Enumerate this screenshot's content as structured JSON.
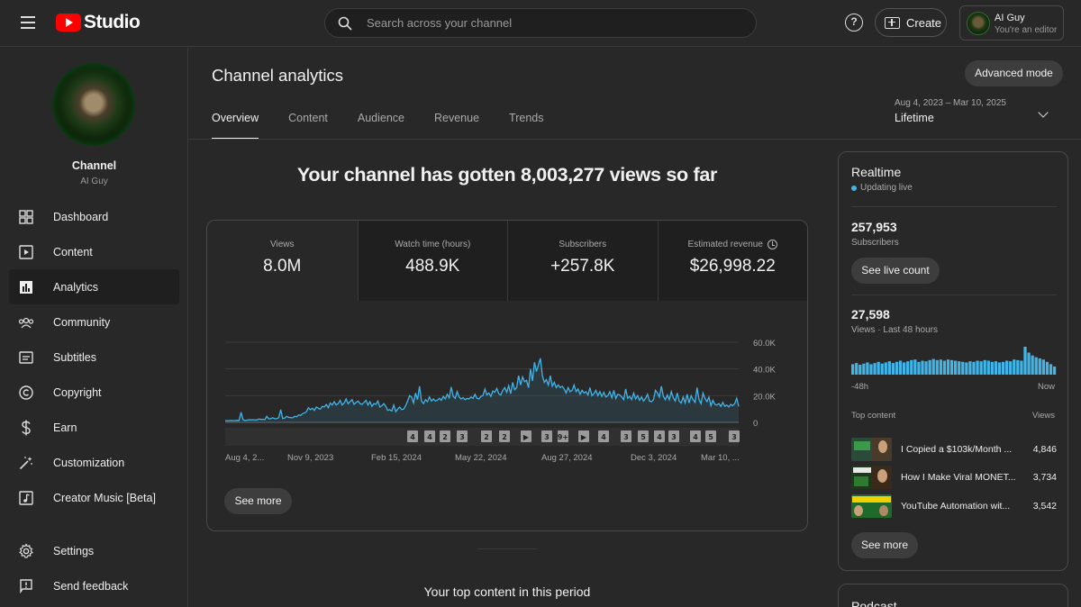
{
  "app": {
    "logo_text": "Studio"
  },
  "search": {
    "placeholder": "Search across your channel"
  },
  "header": {
    "help_symbol": "?",
    "create_label": "Create",
    "account_name": "AI Guy",
    "account_role": "You're an editor"
  },
  "sidebar": {
    "channel_title": "Channel",
    "channel_name": "AI Guy",
    "items": [
      {
        "label": "Dashboard",
        "icon": "dashboard-icon"
      },
      {
        "label": "Content",
        "icon": "content-icon"
      },
      {
        "label": "Analytics",
        "icon": "analytics-icon",
        "active": true
      },
      {
        "label": "Community",
        "icon": "community-icon"
      },
      {
        "label": "Subtitles",
        "icon": "subtitles-icon"
      },
      {
        "label": "Copyright",
        "icon": "copyright-icon"
      },
      {
        "label": "Earn",
        "icon": "earn-icon"
      },
      {
        "label": "Customization",
        "icon": "customization-icon"
      },
      {
        "label": "Creator Music [Beta]",
        "icon": "creator-music-icon"
      },
      {
        "label": "Settings",
        "icon": "settings-icon"
      },
      {
        "label": "Send feedback",
        "icon": "feedback-icon"
      }
    ]
  },
  "main": {
    "title": "Channel analytics",
    "advanced_label": "Advanced mode",
    "tabs": [
      {
        "label": "Overview",
        "active": true
      },
      {
        "label": "Content"
      },
      {
        "label": "Audience"
      },
      {
        "label": "Revenue"
      },
      {
        "label": "Trends"
      }
    ],
    "date_range": {
      "range": "Aug 4, 2023 – Mar 10, 2025",
      "label": "Lifetime"
    },
    "headline": "Your channel has gotten 8,003,277 views so far",
    "metrics": [
      {
        "label": "Views",
        "value": "8.0M"
      },
      {
        "label": "Watch time (hours)",
        "value": "488.9K"
      },
      {
        "label": "Subscribers",
        "value": "+257.8K"
      },
      {
        "label": "Estimated revenue",
        "value": "$26,998.22"
      }
    ],
    "see_more_label": "See more",
    "top_content_heading": "Your top content in this period"
  },
  "chart_data": {
    "type": "line",
    "series": [
      {
        "values": [
          1200,
          1300,
          1250,
          1400,
          1300,
          1350,
          1500,
          1400,
          7500,
          2000,
          1500,
          1600,
          2000,
          1800,
          2000,
          1700,
          1900,
          2500,
          2200,
          2300,
          2100,
          4500,
          2600,
          2800,
          3500,
          2700,
          2800,
          3500,
          9500,
          3000,
          3200,
          4500,
          3800,
          3600,
          3400,
          4500,
          4200,
          5500,
          5200,
          6500,
          7000,
          8000,
          11000,
          9500,
          10500,
          9000,
          11500,
          10500,
          10000,
          12000,
          11500,
          13500,
          11000,
          14500,
          13000,
          15500,
          13000,
          14000,
          16500,
          13000,
          14500,
          17500,
          14000,
          15500,
          17000,
          13500,
          15000,
          16000,
          14000,
          13500,
          15000,
          16500,
          13000,
          15500,
          12000,
          14000,
          13500,
          16000,
          11500,
          12500,
          14000,
          12000,
          9000,
          9500,
          8500,
          13000,
          8000,
          10000,
          11500,
          9500,
          10000,
          12500,
          16000,
          20000,
          19000,
          14500,
          22000,
          17000,
          27000,
          16000,
          14000,
          17000,
          15500,
          19000,
          16000,
          17500,
          16000,
          16500,
          18000,
          16500,
          19500,
          17500,
          21000,
          18500,
          26500,
          19500,
          18000,
          23000,
          19000,
          17500,
          18500,
          17000,
          18000,
          17500,
          19000,
          18000,
          21000,
          18000,
          17500,
          19500,
          20000,
          25000,
          20500,
          22000,
          19500,
          23500,
          22500,
          25500,
          21500,
          20500,
          24000,
          26000,
          22500,
          27500,
          21500,
          30000,
          24500,
          26000,
          35000,
          28000,
          34000,
          30500,
          31500,
          26000,
          40000,
          31000,
          45000,
          38000,
          43000,
          48000,
          35000,
          30000,
          32000,
          28000,
          35000,
          27000,
          30000,
          26000,
          28000,
          26000,
          27000,
          25000,
          22000,
          26000,
          23000,
          24000,
          28000,
          23000,
          25000,
          21000,
          24000,
          22000,
          23000,
          20500,
          26000,
          20000,
          21500,
          24000,
          20000,
          23000,
          19500,
          22500,
          19000,
          20000,
          23000,
          18500,
          24000,
          18000,
          21000,
          20500,
          19000,
          17000,
          25000,
          18000,
          19500,
          17000,
          22000,
          17500,
          20000,
          16500,
          19000,
          16000,
          18000,
          21000,
          16000,
          15500,
          17000,
          24000,
          22000,
          19000,
          27000,
          19500,
          17000,
          20500,
          17000,
          23000,
          18500,
          16000,
          22000,
          16000,
          14500,
          19000,
          14500,
          21000,
          14500,
          20000,
          17000,
          15000,
          26000,
          17000,
          14000,
          22000,
          18000,
          15500,
          19000,
          12500,
          16500,
          13500,
          13000,
          14000,
          12000,
          15000,
          12000,
          13000,
          11500,
          13500,
          12500,
          14000,
          18000,
          12000
        ]
      }
    ],
    "x_tick_labels": [
      "Aug 4, 2...",
      "Nov 9, 2023",
      "Feb 15, 2024",
      "May 22, 2024",
      "Aug 27, 2024",
      "Dec 3, 2024",
      "Mar 10, ..."
    ],
    "y_tick_labels": [
      "60.0K",
      "40.0K",
      "20.0K",
      "0"
    ],
    "ylim": [
      0,
      60000
    ],
    "grid": true,
    "line_color": "#41b4e8",
    "markers": [
      "4",
      "4",
      "2",
      "3",
      "2",
      "2",
      "▶",
      "3",
      "9+",
      "▶",
      "4",
      "3",
      "5",
      "4",
      "3",
      "4",
      "5",
      "3"
    ]
  },
  "realtime": {
    "title": "Realtime",
    "status": "Updating live",
    "subscribers_value": "257,953",
    "subscribers_label": "Subscribers",
    "see_live_label": "See live count",
    "views_value": "27,598",
    "views_label": "Views · Last 48 hours",
    "bar_values": [
      18,
      20,
      17,
      19,
      21,
      18,
      20,
      22,
      19,
      21,
      23,
      20,
      22,
      24,
      21,
      23,
      25,
      26,
      22,
      24,
      23,
      25,
      27,
      25,
      26,
      24,
      26,
      25,
      24,
      23,
      22,
      21,
      23,
      22,
      24,
      23,
      25,
      24,
      22,
      23,
      21,
      22,
      24,
      23,
      26,
      25,
      24,
      48,
      38,
      33,
      30,
      28,
      26,
      22,
      18,
      14
    ],
    "axis_start": "-48h",
    "axis_end": "Now",
    "top_content_label": "Top content",
    "views_col_label": "Views",
    "top_content": [
      {
        "title": "I Copied a $103k/Month ...",
        "views": "4,846"
      },
      {
        "title": "How I Make Viral MONET...",
        "views": "3,734"
      },
      {
        "title": "YouTube Automation wit...",
        "views": "3,542"
      }
    ],
    "see_more_label": "See more"
  },
  "podcast": {
    "title": "Podcast"
  },
  "colors": {
    "accent": "#41b4e8",
    "brand_red": "#ff0000"
  }
}
